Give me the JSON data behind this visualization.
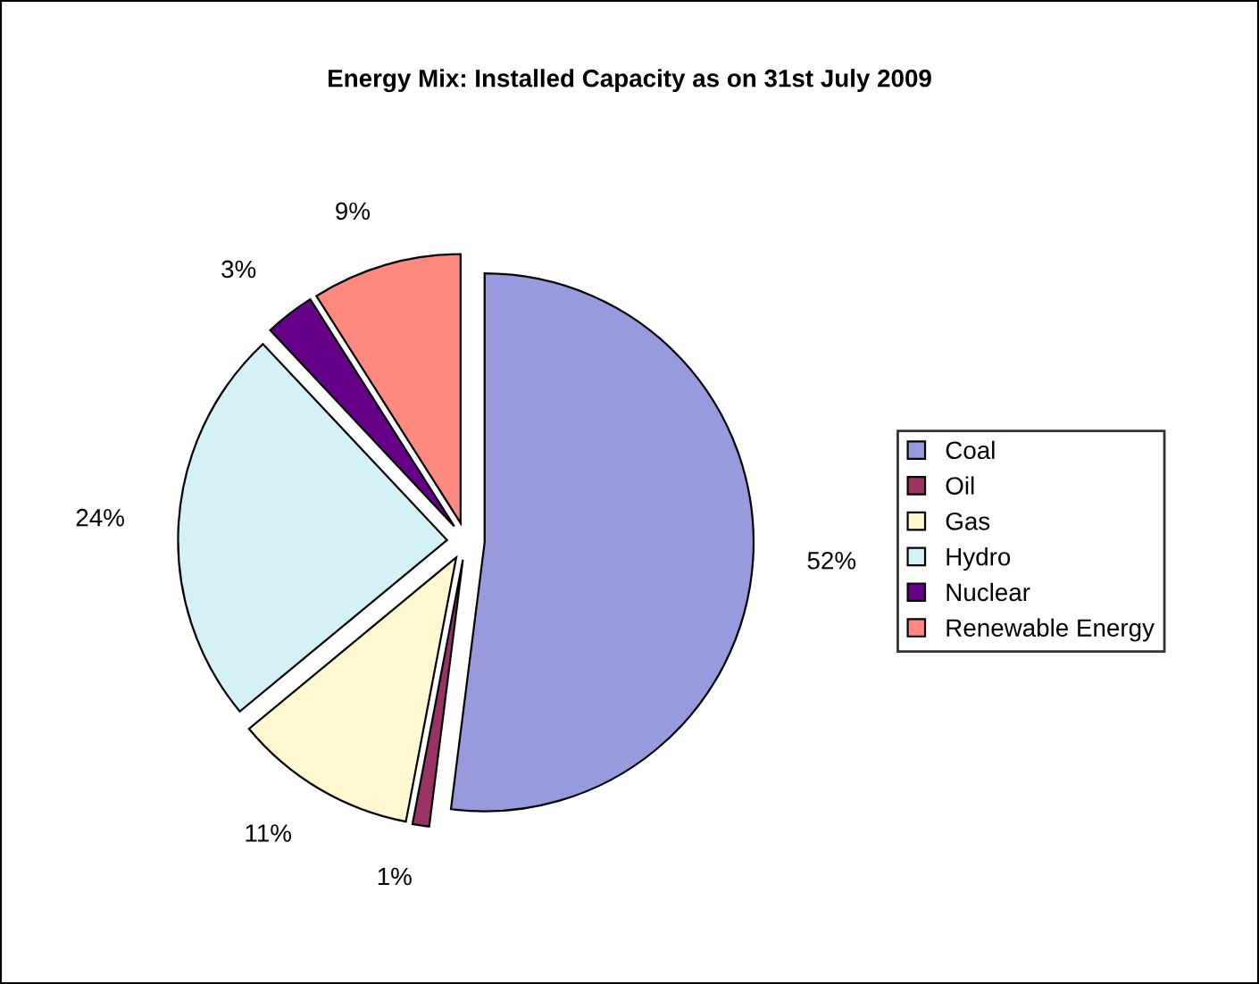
{
  "chart_data": {
    "type": "pie",
    "title": "Energy Mix: Installed Capacity as on 31st July 2009",
    "categories": [
      "Coal",
      "Oil",
      "Gas",
      "Hydro",
      "Nuclear",
      "Renewable Energy"
    ],
    "values": [
      52,
      1,
      11,
      24,
      3,
      9
    ],
    "value_labels": [
      "52%",
      "1%",
      "11%",
      "24%",
      "3%",
      "9%"
    ],
    "colors": [
      "#9999dd",
      "#993366",
      "#fff8d0",
      "#d4f2f6",
      "#660088",
      "#ff8880"
    ],
    "legend": "right"
  }
}
